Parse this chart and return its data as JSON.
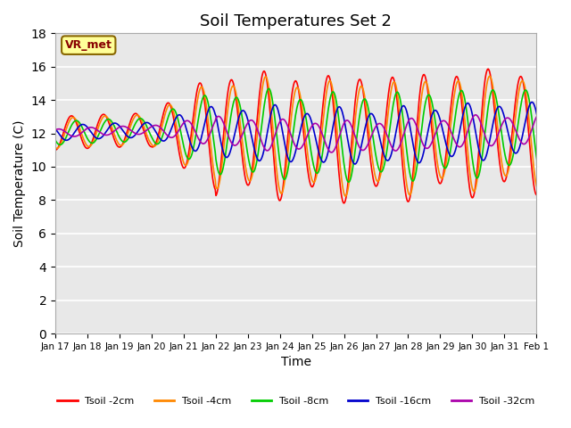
{
  "title": "Soil Temperatures Set 2",
  "xlabel": "Time",
  "ylabel": "Soil Temperature (C)",
  "ylim": [
    0,
    18
  ],
  "yticks": [
    0,
    2,
    4,
    6,
    8,
    10,
    12,
    14,
    16,
    18
  ],
  "xtick_labels": [
    "Jan 17",
    "Jan 18",
    "Jan 19",
    "Jan 20",
    "Jan 21",
    "Jan 22",
    "Jan 23",
    "Jan 24",
    "Jan 25",
    "Jan 26",
    "Jan 27",
    "Jan 28",
    "Jan 29",
    "Jan 30",
    "Jan 31",
    "Feb 1"
  ],
  "legend_labels": [
    "Tsoil -2cm",
    "Tsoil -4cm",
    "Tsoil -8cm",
    "Tsoil -16cm",
    "Tsoil -32cm"
  ],
  "line_colors": [
    "#ff0000",
    "#ff8800",
    "#00cc00",
    "#0000cc",
    "#aa00aa"
  ],
  "annotation_text": "VR_met",
  "annotation_bg": "#ffff99",
  "annotation_border": "#886600",
  "title_fontsize": 13,
  "label_fontsize": 10,
  "n_days": 16,
  "pts_per_day": 48,
  "phase_lags": [
    0,
    0.05,
    0.15,
    0.35,
    0.6
  ],
  "depth_factors": [
    1.0,
    0.9,
    0.7,
    0.45,
    0.25
  ],
  "mean_temps": [
    12.0,
    12.0,
    12.0,
    12.0,
    12.0
  ]
}
